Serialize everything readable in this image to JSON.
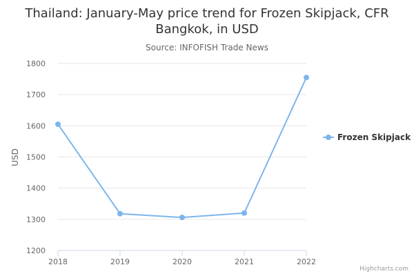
{
  "chart_data": {
    "type": "line",
    "title_lines": [
      "Thailand: January-May price trend for Frozen Skipjack, CFR",
      "Bangkok, in USD"
    ],
    "subtitle": "Source: INFOFISH Trade News",
    "xlabel": "",
    "ylabel": "USD",
    "categories": [
      "2018",
      "2019",
      "2020",
      "2021",
      "2022"
    ],
    "yticks": [
      "1200",
      "1300",
      "1400",
      "1500",
      "1600",
      "1700",
      "1800"
    ],
    "ylim": [
      1200,
      1800
    ],
    "grid": true,
    "legend_position": "right",
    "series": [
      {
        "name": "Frozen Skipjack",
        "color": "#7cb5ec",
        "values": [
          1605,
          1318,
          1306,
          1320,
          1755
        ]
      }
    ]
  },
  "credits": "Highcharts.com"
}
